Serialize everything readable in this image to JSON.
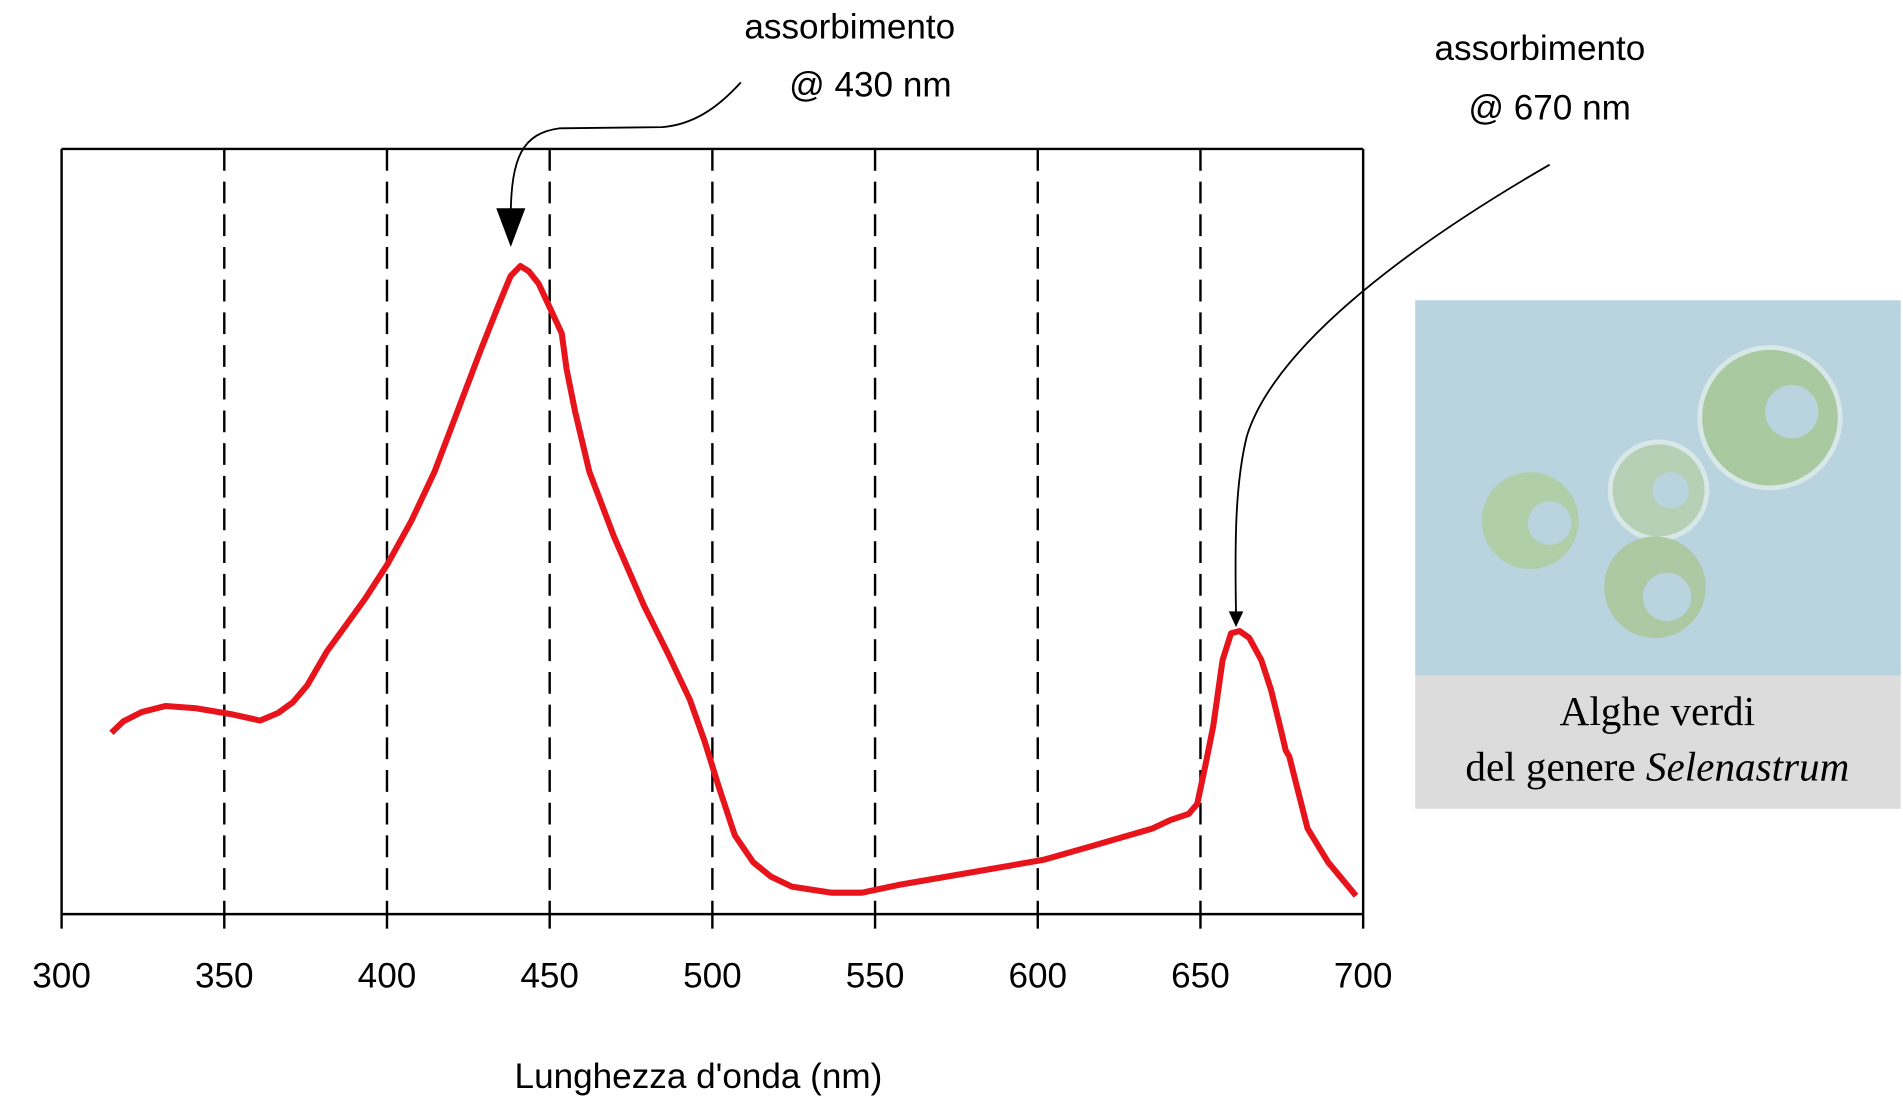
{
  "chart_data": {
    "type": "line",
    "xlabel": "Lunghezza d'onda (nm)",
    "xlim": [
      300,
      700
    ],
    "xticks": [
      300,
      350,
      400,
      450,
      500,
      550,
      600,
      650,
      700
    ],
    "ylim": [
      0,
      1
    ],
    "grid": true,
    "x": [
      315.3,
      319.0,
      324.6,
      332.0,
      341.3,
      352.5,
      361.0,
      366.6,
      371.1,
      375.5,
      381.5,
      387.8,
      393.4,
      400.1,
      407.5,
      414.6,
      421.3,
      428.7,
      434.3,
      438.0,
      441.0,
      443.6,
      446.6,
      450.0,
      453.7,
      455.2,
      457.8,
      462.2,
      469.7,
      479.0,
      486.4,
      493.1,
      497.6,
      502.0,
      506.9,
      512.5,
      518.0,
      524.4,
      536.7,
      546.0,
      557.1,
      572.0,
      586.9,
      601.8,
      616.7,
      635.3,
      640.8,
      646.4,
      649.0,
      651.3,
      653.9,
      656.8,
      659.4,
      662.0,
      665.0,
      668.7,
      671.7,
      674.7,
      676.2,
      677.3,
      679.2,
      682.9,
      689.2,
      697.8
    ],
    "series": [
      {
        "color": "#e8141c",
        "values": [
          0.237,
          0.252,
          0.264,
          0.272,
          0.269,
          0.261,
          0.253,
          0.263,
          0.277,
          0.299,
          0.343,
          0.38,
          0.413,
          0.457,
          0.514,
          0.578,
          0.653,
          0.736,
          0.796,
          0.834,
          0.847,
          0.84,
          0.824,
          0.793,
          0.759,
          0.712,
          0.657,
          0.578,
          0.494,
          0.403,
          0.34,
          0.28,
          0.226,
          0.166,
          0.103,
          0.068,
          0.049,
          0.036,
          0.028,
          0.028,
          0.038,
          0.049,
          0.06,
          0.071,
          0.089,
          0.112,
          0.123,
          0.131,
          0.144,
          0.19,
          0.245,
          0.332,
          0.367,
          0.37,
          0.361,
          0.332,
          0.293,
          0.241,
          0.214,
          0.206,
          0.174,
          0.112,
          0.068,
          0.024
        ]
      }
    ],
    "annotations": [
      [
        "assorbimento",
        "@ 430 nm"
      ],
      [
        "assorbimento",
        "@ 670 nm"
      ]
    ]
  },
  "image": {
    "caption": [
      "Alghe verdi",
      "del genere ",
      "Selenastrum"
    ]
  }
}
